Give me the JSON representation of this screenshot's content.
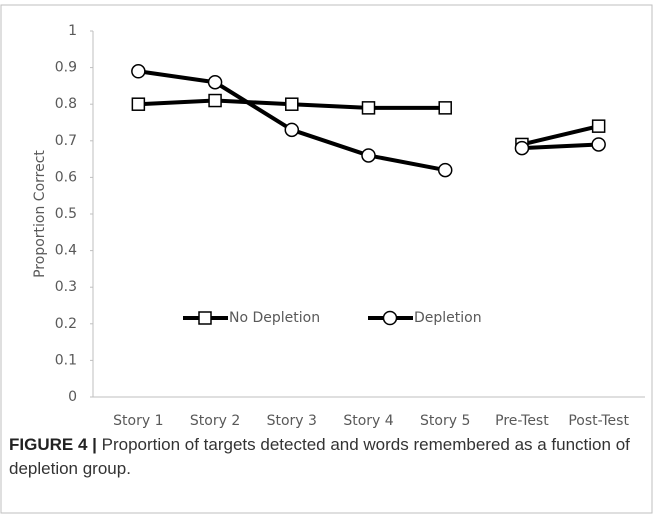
{
  "chart_data": {
    "type": "line",
    "y_label": "Proportion Correct",
    "categories": [
      "Story 1",
      "Story 2",
      "Story 3",
      "Story 4",
      "Story 5",
      "Pre-Test",
      "Post-Test"
    ],
    "break_before": "Pre-Test",
    "series": [
      {
        "name": "No Depletion",
        "color": "#000000",
        "marker": "square",
        "values": [
          0.8,
          0.81,
          0.8,
          0.79,
          0.79,
          0.69,
          0.74
        ]
      },
      {
        "name": "Depletion",
        "color": "#000000",
        "marker": "circle",
        "values": [
          0.89,
          0.86,
          0.73,
          0.66,
          0.62,
          0.68,
          0.69
        ]
      }
    ],
    "ylim": [
      0,
      1
    ],
    "yticks": [
      0,
      0.1,
      0.2,
      0.3,
      0.4,
      0.5,
      0.6,
      0.7,
      0.8,
      0.9,
      1
    ],
    "grid": false,
    "legend": "inside-bottom"
  },
  "caption_label": "FIGURE 4 |",
  "caption": "Proportion of targets detected and words remembered as a function of depletion group."
}
